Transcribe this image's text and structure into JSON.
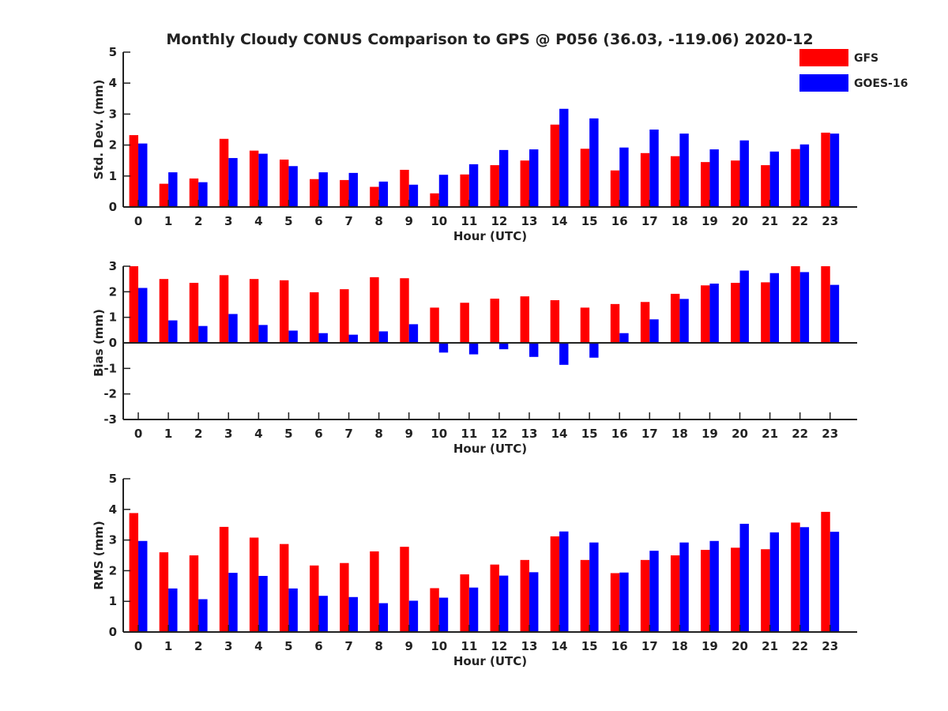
{
  "title": "Monthly Cloudy CONUS Comparison to GPS @ P056 (36.03, -119.06) 2020-12",
  "legend": {
    "placement": "top-right",
    "entries": [
      {
        "name": "GFS",
        "color": "#ff0000"
      },
      {
        "name": "GOES-16",
        "color": "#0000ff"
      }
    ]
  },
  "chart_data": [
    {
      "type": "bar",
      "xlabel": "Hour (UTC)",
      "ylabel": "Std. Dev. (mm)",
      "ylim": [
        0,
        5
      ],
      "yticks": [
        0,
        1,
        2,
        3,
        4,
        5
      ],
      "categories": [
        "0",
        "1",
        "2",
        "3",
        "4",
        "5",
        "6",
        "7",
        "8",
        "9",
        "10",
        "11",
        "12",
        "13",
        "14",
        "15",
        "16",
        "17",
        "18",
        "19",
        "20",
        "21",
        "22",
        "23"
      ],
      "series": [
        {
          "name": "GFS",
          "color": "#ff0000",
          "values": [
            2.32,
            0.75,
            0.92,
            2.2,
            1.82,
            1.53,
            0.9,
            0.87,
            0.65,
            1.2,
            0.44,
            1.05,
            1.35,
            1.5,
            2.66,
            1.88,
            1.18,
            1.74,
            1.64,
            1.45,
            1.5,
            1.35,
            1.87,
            2.4
          ]
        },
        {
          "name": "GOES-16",
          "color": "#0000ff",
          "values": [
            2.05,
            1.12,
            0.8,
            1.58,
            1.72,
            1.32,
            1.12,
            1.1,
            0.82,
            0.72,
            1.04,
            1.38,
            1.84,
            1.86,
            3.17,
            2.86,
            1.92,
            2.5,
            2.37,
            1.86,
            2.15,
            1.79,
            2.02,
            2.37
          ]
        }
      ]
    },
    {
      "type": "bar",
      "xlabel": "Hour (UTC)",
      "ylabel": "Bias (mm)",
      "ylim": [
        -3,
        3
      ],
      "yticks": [
        -3,
        -2,
        -1,
        0,
        1,
        2,
        3
      ],
      "categories": [
        "0",
        "1",
        "2",
        "3",
        "4",
        "5",
        "6",
        "7",
        "8",
        "9",
        "10",
        "11",
        "12",
        "13",
        "14",
        "15",
        "16",
        "17",
        "18",
        "19",
        "20",
        "21",
        "22",
        "23"
      ],
      "series": [
        {
          "name": "GFS",
          "color": "#ff0000",
          "values": [
            3.0,
            2.5,
            2.35,
            2.65,
            2.5,
            2.45,
            1.98,
            2.1,
            2.57,
            2.53,
            1.38,
            1.57,
            1.73,
            1.82,
            1.67,
            1.38,
            1.52,
            1.6,
            1.92,
            2.25,
            2.35,
            2.37,
            3.0,
            3.0
          ]
        },
        {
          "name": "GOES-16",
          "color": "#0000ff",
          "values": [
            2.15,
            0.88,
            0.66,
            1.13,
            0.7,
            0.48,
            0.38,
            0.32,
            0.45,
            0.73,
            -0.38,
            -0.45,
            -0.25,
            -0.55,
            -0.86,
            -0.58,
            0.38,
            0.92,
            1.72,
            2.32,
            2.83,
            2.73,
            2.77,
            2.27
          ]
        }
      ]
    },
    {
      "type": "bar",
      "xlabel": "Hour (UTC)",
      "ylabel": "RMS (mm)",
      "ylim": [
        0,
        5
      ],
      "yticks": [
        0,
        1,
        2,
        3,
        4,
        5
      ],
      "categories": [
        "0",
        "1",
        "2",
        "3",
        "4",
        "5",
        "6",
        "7",
        "8",
        "9",
        "10",
        "11",
        "12",
        "13",
        "14",
        "15",
        "16",
        "17",
        "18",
        "19",
        "20",
        "21",
        "22",
        "23"
      ],
      "series": [
        {
          "name": "GFS",
          "color": "#ff0000",
          "values": [
            3.88,
            2.6,
            2.5,
            3.43,
            3.08,
            2.87,
            2.17,
            2.25,
            2.63,
            2.78,
            1.43,
            1.88,
            2.2,
            2.35,
            3.12,
            2.35,
            1.92,
            2.35,
            2.5,
            2.68,
            2.75,
            2.7,
            3.57,
            3.92
          ]
        },
        {
          "name": "GOES-16",
          "color": "#0000ff",
          "values": [
            2.97,
            1.42,
            1.07,
            1.93,
            1.83,
            1.42,
            1.18,
            1.14,
            0.94,
            1.02,
            1.12,
            1.45,
            1.84,
            1.95,
            3.28,
            2.92,
            1.94,
            2.65,
            2.92,
            2.97,
            3.53,
            3.25,
            3.42,
            3.27
          ]
        }
      ]
    }
  ]
}
